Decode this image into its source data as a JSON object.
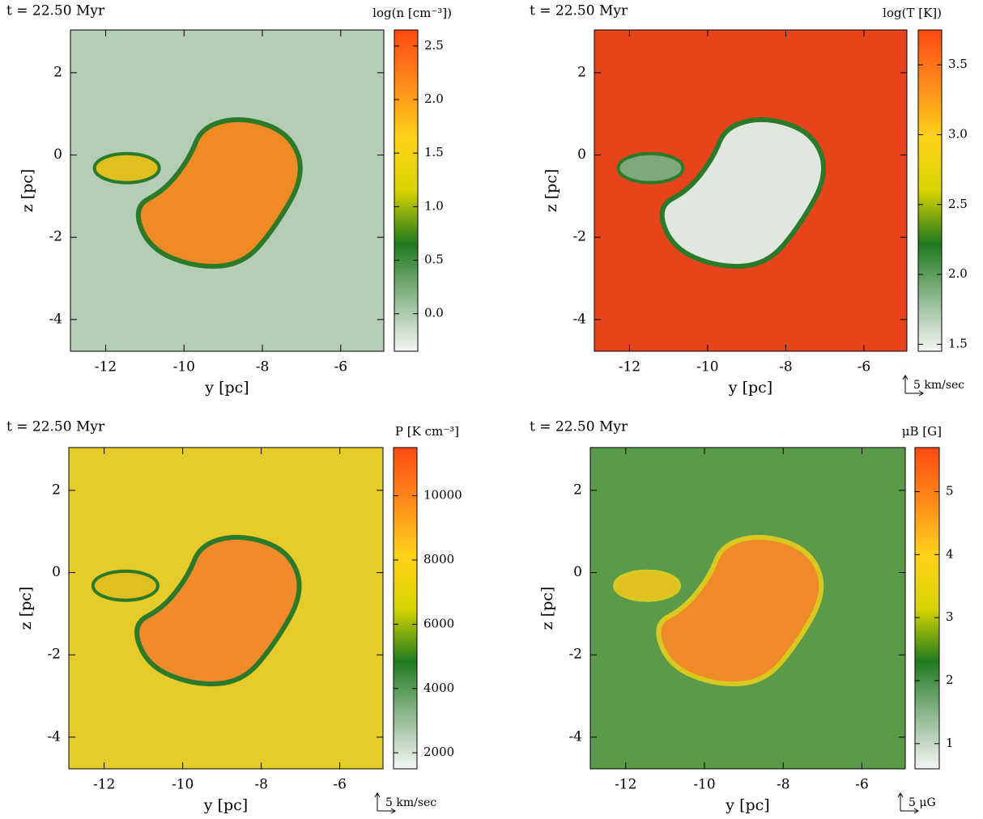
{
  "chart_data": [
    {
      "type": "heatmap",
      "title": "t = 22.50 Myr",
      "colorbar_label": "log(n [cm⁻³])",
      "colorbar_lim": [
        -0.35,
        2.65
      ],
      "colorbar_ticks": [
        {
          "value": 0,
          "label": "0.0"
        },
        0.5,
        {
          "value": 1,
          "label": "1.0"
        },
        1.5,
        {
          "value": 2,
          "label": "2.0"
        },
        2.5
      ],
      "colormap": [
        "#f4f6f4",
        "#8fb88f",
        "#1f7a1f",
        "#d8d400",
        "#ffd21a",
        "#ff8a1a",
        "#ff4a12"
      ],
      "xlabel": "y [pc]",
      "ylabel": "z [pc]",
      "xlim": [
        -12.9,
        -4.9
      ],
      "ylim": [
        -4.77,
        3.04
      ],
      "xticks": [
        -12,
        -10,
        -8,
        -6
      ],
      "yticks": [
        2,
        0,
        -2,
        -4
      ]
    },
    {
      "type": "heatmap",
      "title": "t = 22.50 Myr",
      "colorbar_label": "log(T [K])",
      "colorbar_lim": [
        1.45,
        3.75
      ],
      "colorbar_ticks": [
        1.5,
        {
          "value": 2,
          "label": "2.0"
        },
        2.5,
        {
          "value": 3,
          "label": "3.0"
        },
        3.5
      ],
      "colormap": [
        "#f4f6f4",
        "#8fb88f",
        "#1f7a1f",
        "#d8d400",
        "#ffd21a",
        "#ff8a1a",
        "#ff4a12"
      ],
      "xlabel": "y [pc]",
      "ylabel": "z [pc]",
      "xlim": [
        -12.9,
        -4.9
      ],
      "ylim": [
        -4.77,
        3.04
      ],
      "xticks": [
        -12,
        -10,
        -8,
        -6
      ],
      "yticks": [
        2,
        0,
        -2,
        -4
      ],
      "scale_label": "5 km/sec"
    },
    {
      "type": "heatmap",
      "title": "t = 22.50 Myr",
      "colorbar_label": "P [K cm⁻³]",
      "colorbar_lim": [
        1500,
        11500
      ],
      "colorbar_ticks": [
        2000,
        4000,
        6000,
        8000,
        10000
      ],
      "colormap": [
        "#f4f6f4",
        "#8fb88f",
        "#1f7a1f",
        "#d8d400",
        "#ffd21a",
        "#ff8a1a",
        "#ff4a12"
      ],
      "xlabel": "y [pc]",
      "ylabel": "z [pc]",
      "xlim": [
        -12.9,
        -4.9
      ],
      "ylim": [
        -4.77,
        3.04
      ],
      "xticks": [
        -12,
        -10,
        -8,
        -6
      ],
      "yticks": [
        2,
        0,
        -2,
        -4
      ],
      "scale_label": "5 km/sec"
    },
    {
      "type": "heatmap",
      "title": "t = 22.50 Myr",
      "colorbar_label": "μB [G]",
      "colorbar_lim": [
        0.6,
        5.7
      ],
      "colorbar_ticks": [
        1,
        2,
        3,
        4,
        5
      ],
      "colormap": [
        "#f4f6f4",
        "#8fb88f",
        "#1f7a1f",
        "#d8d400",
        "#ffd21a",
        "#ff8a1a",
        "#ff4a12"
      ],
      "xlabel": "y [pc]",
      "ylabel": "z [pc]",
      "xlim": [
        -12.9,
        -4.9
      ],
      "ylim": [
        -4.77,
        3.04
      ],
      "xticks": [
        -12,
        -10,
        -8,
        -6
      ],
      "yticks": [
        2,
        0,
        -2,
        -4
      ],
      "scale_label": "5 μG"
    }
  ]
}
